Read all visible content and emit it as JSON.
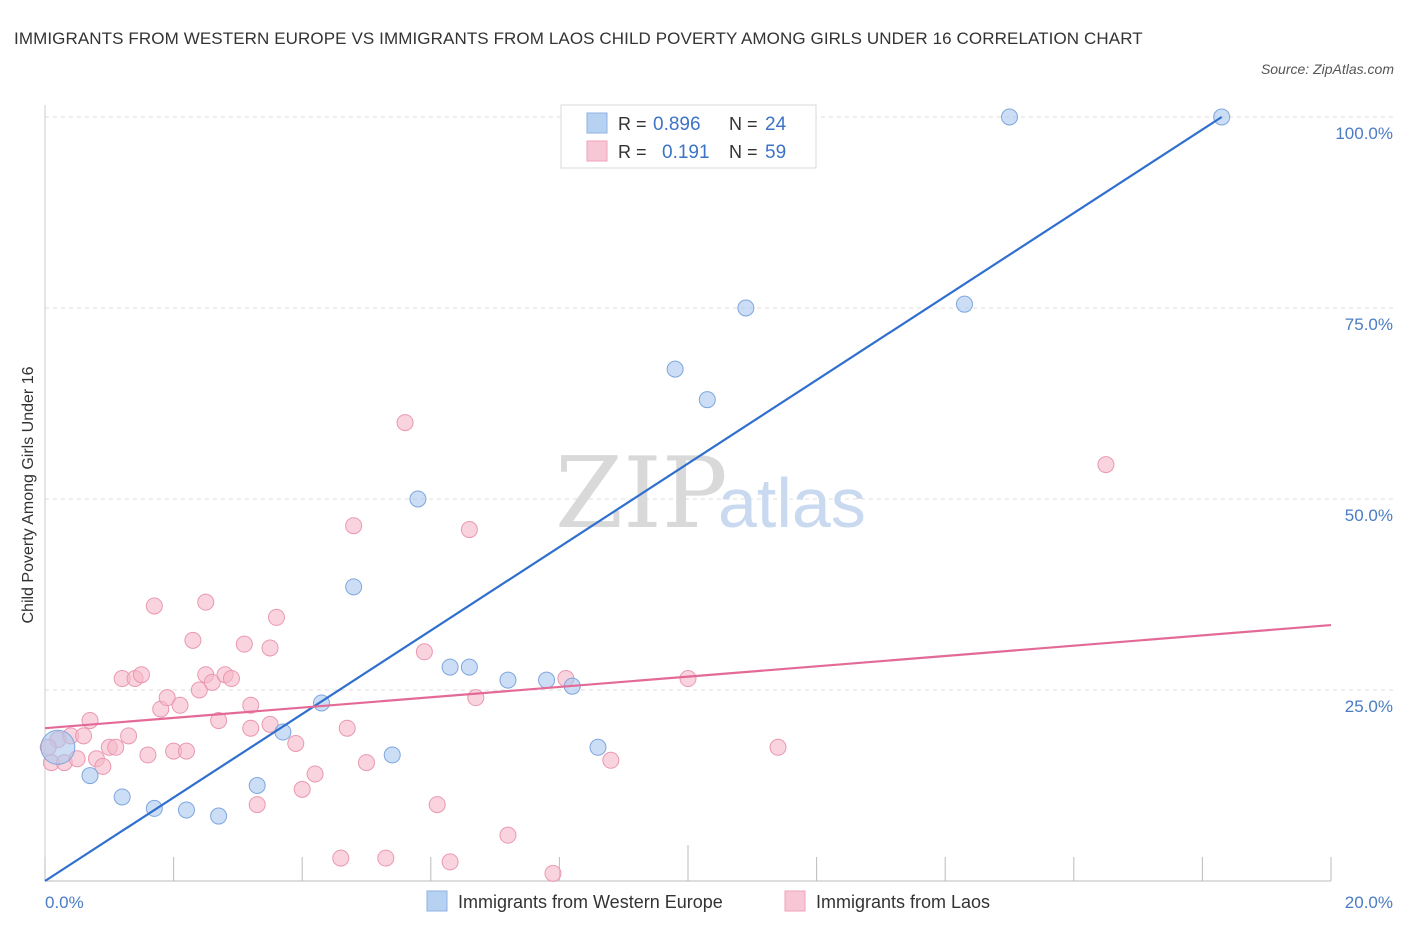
{
  "title": "IMMIGRANTS FROM WESTERN EUROPE VS IMMIGRANTS FROM LAOS CHILD POVERTY AMONG GIRLS UNDER 16 CORRELATION CHART",
  "source": "Source: ZipAtlas.com",
  "watermark": {
    "zip": "ZIP",
    "atlas": "atlas"
  },
  "chart_data": {
    "type": "scatter",
    "title": "IMMIGRANTS FROM WESTERN EUROPE VS IMMIGRANTS FROM LAOS CHILD POVERTY AMONG GIRLS UNDER 16 CORRELATION CHART",
    "xlabel": "",
    "ylabel": "Child Poverty Among Girls Under 16",
    "xlim": [
      0,
      20
    ],
    "ylim": [
      0,
      100
    ],
    "x_tick_labels": [
      "0.0%",
      "20.0%"
    ],
    "y_ticks": [
      25,
      50,
      75,
      100
    ],
    "y_tick_labels": [
      "25.0%",
      "50.0%",
      "75.0%",
      "100.0%"
    ],
    "grid": true,
    "legend_position": "top-center",
    "series": [
      {
        "name": "Immigrants from Western Europe",
        "color": "#a9c8ef",
        "line_color": "#2f6fce",
        "R": "0.896",
        "N": "24",
        "trend": {
          "x0": 0,
          "y0": 0,
          "x1": 18.3,
          "y1": 100
        },
        "points": [
          [
            0.2,
            17.5
          ],
          [
            0.7,
            13.8
          ],
          [
            1.2,
            11.0
          ],
          [
            1.7,
            9.5
          ],
          [
            2.2,
            9.3
          ],
          [
            2.7,
            8.5
          ],
          [
            3.3,
            12.5
          ],
          [
            3.7,
            19.5
          ],
          [
            4.3,
            23.3
          ],
          [
            4.8,
            38.5
          ],
          [
            5.4,
            16.5
          ],
          [
            5.8,
            50.0
          ],
          [
            6.3,
            28.0
          ],
          [
            6.6,
            28.0
          ],
          [
            7.2,
            26.3
          ],
          [
            7.8,
            26.3
          ],
          [
            8.2,
            25.5
          ],
          [
            8.6,
            17.5
          ],
          [
            9.8,
            67.0
          ],
          [
            10.3,
            63.0
          ],
          [
            10.9,
            75.0
          ],
          [
            14.3,
            75.5
          ],
          [
            15.0,
            100.0
          ],
          [
            18.3,
            100.0
          ]
        ]
      },
      {
        "name": "Immigrants from Laos",
        "color": "#f5b7c8",
        "line_color": "#e36a97",
        "R": "0.191",
        "N": "59",
        "trend": {
          "x0": 0,
          "y0": 20,
          "x1": 20,
          "y1": 33.5
        },
        "points": [
          [
            0.1,
            15.5
          ],
          [
            0.2,
            18.5
          ],
          [
            0.3,
            15.5
          ],
          [
            0.4,
            19.0
          ],
          [
            0.5,
            16.0
          ],
          [
            0.6,
            19.0
          ],
          [
            0.7,
            21.0
          ],
          [
            0.8,
            16.0
          ],
          [
            0.9,
            15.0
          ],
          [
            1.0,
            17.5
          ],
          [
            1.1,
            17.5
          ],
          [
            1.2,
            26.5
          ],
          [
            1.3,
            19.0
          ],
          [
            1.4,
            26.5
          ],
          [
            1.5,
            27.0
          ],
          [
            1.6,
            16.5
          ],
          [
            1.7,
            36.0
          ],
          [
            1.8,
            22.5
          ],
          [
            1.9,
            24.0
          ],
          [
            2.0,
            17.0
          ],
          [
            2.1,
            23.0
          ],
          [
            2.2,
            17.0
          ],
          [
            2.3,
            31.5
          ],
          [
            2.4,
            25.0
          ],
          [
            2.5,
            36.5
          ],
          [
            2.5,
            27.0
          ],
          [
            2.6,
            26.0
          ],
          [
            2.7,
            21.0
          ],
          [
            2.8,
            27.0
          ],
          [
            2.9,
            26.5
          ],
          [
            3.1,
            31.0
          ],
          [
            3.2,
            20.0
          ],
          [
            3.2,
            23.0
          ],
          [
            3.3,
            10.0
          ],
          [
            3.5,
            30.5
          ],
          [
            3.5,
            20.5
          ],
          [
            3.6,
            34.5
          ],
          [
            3.9,
            18.0
          ],
          [
            4.0,
            12.0
          ],
          [
            4.2,
            14.0
          ],
          [
            4.6,
            3.0
          ],
          [
            4.7,
            20.0
          ],
          [
            4.8,
            46.5
          ],
          [
            5.0,
            15.5
          ],
          [
            5.3,
            3.0
          ],
          [
            5.6,
            60.0
          ],
          [
            5.9,
            30.0
          ],
          [
            6.1,
            10.0
          ],
          [
            6.3,
            2.5
          ],
          [
            6.6,
            46.0
          ],
          [
            6.7,
            24.0
          ],
          [
            7.2,
            6.0
          ],
          [
            7.9,
            1.0
          ],
          [
            8.1,
            26.5
          ],
          [
            8.8,
            15.8
          ],
          [
            10.0,
            26.5
          ],
          [
            11.4,
            17.5
          ],
          [
            16.5,
            54.5
          ],
          [
            0.05,
            17.5
          ]
        ]
      }
    ]
  }
}
